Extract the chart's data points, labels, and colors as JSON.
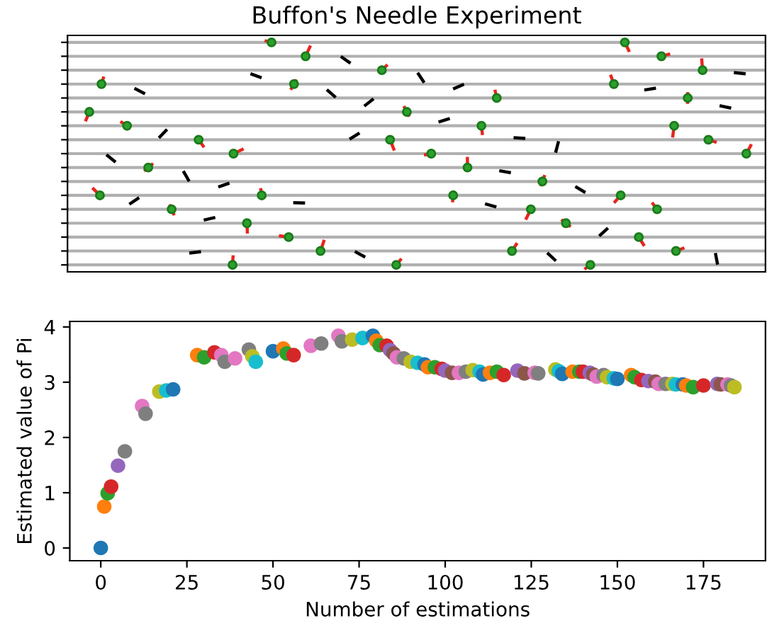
{
  "chart_data": [
    {
      "type": "other",
      "title": "Buffon's Needle Experiment"
    },
    {
      "type": "scatter",
      "xlabel": "Number of estimations",
      "ylabel": "Estimated value of Pi",
      "xlim": [
        -9,
        193
      ],
      "ylim": [
        -0.23,
        4.1
      ],
      "xticks": [
        0,
        25,
        50,
        75,
        100,
        125,
        150,
        175
      ],
      "yticks": [
        0,
        1,
        2,
        3,
        4
      ],
      "grid": false,
      "marker": "circle",
      "x": [
        0,
        1,
        2,
        3,
        5,
        7,
        12,
        13,
        17,
        19,
        21,
        28,
        30,
        33,
        35,
        36,
        39,
        43,
        44,
        45,
        50,
        53,
        54,
        56,
        61,
        64,
        69,
        70,
        73,
        76,
        79,
        80,
        81,
        83,
        84,
        85,
        86,
        88,
        90,
        92,
        94,
        95,
        97,
        99,
        100,
        102,
        104,
        106,
        108,
        110,
        111,
        113,
        115,
        117,
        121,
        123,
        126,
        127,
        132,
        133,
        134,
        137,
        139,
        140,
        142,
        143,
        144,
        146,
        147,
        149,
        150,
        154,
        155,
        157,
        159,
        161,
        162,
        164,
        166,
        167,
        169,
        170,
        172,
        175,
        179,
        180,
        182,
        183,
        184
      ],
      "values": [
        0,
        0.75,
        0.99,
        1.11,
        1.49,
        1.75,
        2.57,
        2.43,
        2.83,
        2.85,
        2.87,
        3.49,
        3.45,
        3.54,
        3.49,
        3.37,
        3.43,
        3.59,
        3.47,
        3.37,
        3.56,
        3.61,
        3.52,
        3.49,
        3.66,
        3.7,
        3.84,
        3.74,
        3.77,
        3.8,
        3.84,
        3.75,
        3.67,
        3.66,
        3.58,
        3.52,
        3.45,
        3.43,
        3.37,
        3.35,
        3.32,
        3.27,
        3.27,
        3.24,
        3.21,
        3.17,
        3.17,
        3.19,
        3.22,
        3.19,
        3.14,
        3.17,
        3.19,
        3.13,
        3.21,
        3.16,
        3.17,
        3.16,
        3.23,
        3.2,
        3.15,
        3.19,
        3.19,
        3.19,
        3.17,
        3.14,
        3.1,
        3.13,
        3.09,
        3.07,
        3.06,
        3.13,
        3.09,
        3.04,
        3.02,
        3.01,
        2.97,
        2.97,
        2.97,
        2.96,
        2.96,
        2.94,
        2.91,
        2.94,
        2.97,
        2.96,
        2.96,
        2.94,
        2.91
      ],
      "colors": [
        "#1f77b4",
        "#ff7f0e",
        "#2ca02c",
        "#d62728",
        "#9467bd",
        "#7f7f7f",
        "#e377c2",
        "#7f7f7f",
        "#bcbd22",
        "#17becf",
        "#1f77b4",
        "#ff7f0e",
        "#2ca02c",
        "#d62728",
        "#e377c2",
        "#7f7f7f",
        "#e377c2",
        "#7f7f7f",
        "#bcbd22",
        "#17becf",
        "#1f77b4",
        "#ff7f0e",
        "#2ca02c",
        "#d62728",
        "#e377c2",
        "#7f7f7f",
        "#e377c2",
        "#7f7f7f",
        "#bcbd22",
        "#17becf",
        "#1f77b4",
        "#ff7f0e",
        "#2ca02c",
        "#d62728",
        "#9467bd",
        "#8c564b",
        "#e377c2",
        "#7f7f7f",
        "#bcbd22",
        "#17becf",
        "#1f77b4",
        "#ff7f0e",
        "#2ca02c",
        "#d62728",
        "#9467bd",
        "#8c564b",
        "#e377c2",
        "#7f7f7f",
        "#bcbd22",
        "#17becf",
        "#1f77b4",
        "#ff7f0e",
        "#2ca02c",
        "#d62728",
        "#9467bd",
        "#8c564b",
        "#e377c2",
        "#7f7f7f",
        "#bcbd22",
        "#17becf",
        "#1f77b4",
        "#ff7f0e",
        "#2ca02c",
        "#d62728",
        "#9467bd",
        "#8c564b",
        "#e377c2",
        "#7f7f7f",
        "#bcbd22",
        "#17becf",
        "#1f77b4",
        "#ff7f0e",
        "#2ca02c",
        "#d62728",
        "#9467bd",
        "#8c564b",
        "#e377c2",
        "#7f7f7f",
        "#bcbd22",
        "#17becf",
        "#1f77b4",
        "#ff7f0e",
        "#2ca02c",
        "#d62728",
        "#9467bd",
        "#8c564b",
        "#e377c2",
        "#7f7f7f",
        "#bcbd22"
      ]
    }
  ]
}
